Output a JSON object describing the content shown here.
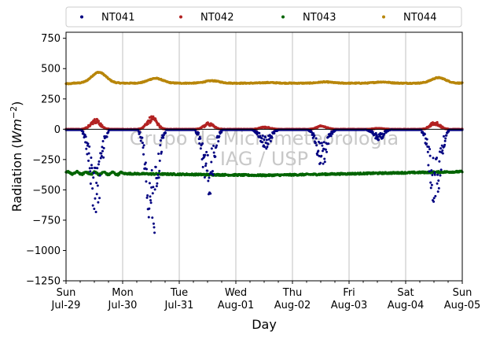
{
  "chart_data": {
    "type": "scatter",
    "xlabel": "Day",
    "ylabel_main": "Radiation (",
    "ylabel_unit": "Wm",
    "ylabel_exp": "−2",
    "ylabel_close": ")",
    "ylim": [
      -1250,
      800
    ],
    "yticks": [
      -1250,
      -1000,
      -750,
      -500,
      -250,
      0,
      250,
      500,
      750
    ],
    "ytick_labels": [
      "−1250",
      "−1000",
      "−750",
      "−500",
      "−250",
      "0",
      "250",
      "500",
      "750"
    ],
    "xlim_days": [
      0,
      7
    ],
    "xticks": [
      {
        "day": "Sun",
        "date": "Jul-29"
      },
      {
        "day": "Mon",
        "date": "Jul-30"
      },
      {
        "day": "Tue",
        "date": "Jul-31"
      },
      {
        "day": "Wed",
        "date": "Aug-01"
      },
      {
        "day": "Thu",
        "date": "Aug-02"
      },
      {
        "day": "Fri",
        "date": "Aug-03"
      },
      {
        "day": "Sat",
        "date": "Aug-04"
      },
      {
        "day": "Sun",
        "date": "Aug-05"
      }
    ],
    "grid": "vertical",
    "zero_line": true,
    "legend_position": "top, outside, 4 columns",
    "watermark": [
      "Grupo de Micrometeorologia",
      "IAG / USP"
    ],
    "series": [
      {
        "name": "NT041",
        "color": "#000080",
        "description_values": {
          "daily_min": [
            -720,
            -900,
            -540,
            -160,
            -290,
            -90,
            -640
          ],
          "night_value": -5
        }
      },
      {
        "name": "NT042",
        "color": "#b22222",
        "description_values": {
          "daily_max": [
            80,
            100,
            50,
            20,
            30,
            10,
            60
          ],
          "night_value": 0
        }
      },
      {
        "name": "NT043",
        "color": "#006400",
        "description_values": {
          "start": -360,
          "mid": -380,
          "end": -350
        }
      },
      {
        "name": "NT044",
        "color": "#b8860b",
        "description_values": {
          "start": 375,
          "peak": [
            470,
            420,
            400,
            385,
            390,
            390,
            425
          ],
          "base": 380
        }
      }
    ]
  }
}
